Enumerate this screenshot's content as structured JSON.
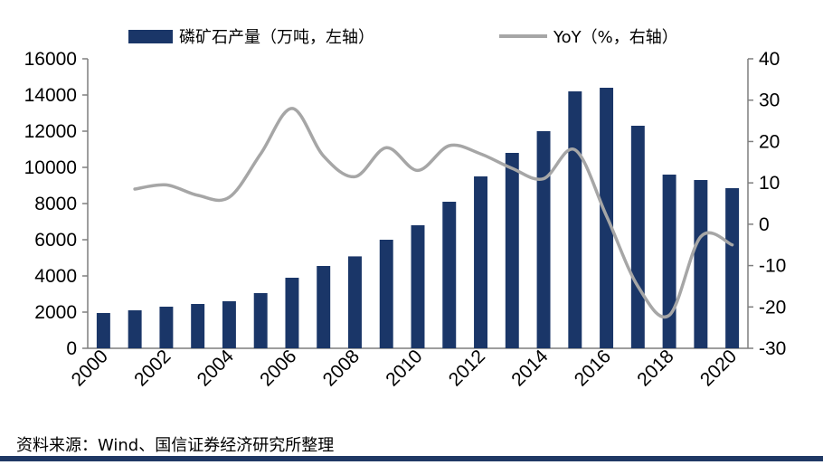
{
  "colors": {
    "bar": "#1a3668",
    "line": "#a6a6a6",
    "axis": "#7f7f7f",
    "rule": "#1f3864"
  },
  "legend": {
    "bar_label": "磷矿石产量（万吨，左轴）",
    "line_label": "YoY（%，右轴）"
  },
  "source": "资料来源：Wind、国信证券经济研究所整理",
  "chart_data": {
    "type": "bar+line",
    "title": "",
    "categories": [
      "2000",
      "2001",
      "2002",
      "2003",
      "2004",
      "2005",
      "2006",
      "2007",
      "2008",
      "2009",
      "2010",
      "2011",
      "2012",
      "2013",
      "2014",
      "2015",
      "2016",
      "2017",
      "2018",
      "2019",
      "2020"
    ],
    "x_tick_labels": [
      "2000",
      "2002",
      "2004",
      "2006",
      "2008",
      "2010",
      "2012",
      "2014",
      "2016",
      "2018",
      "2020"
    ],
    "left_axis": {
      "ylim": [
        0,
        16000
      ],
      "ticks": [
        0,
        2000,
        4000,
        6000,
        8000,
        10000,
        12000,
        14000,
        16000
      ]
    },
    "right_axis": {
      "ylim": [
        -30,
        40
      ],
      "ticks": [
        -30,
        -20,
        -10,
        0,
        10,
        20,
        30,
        40
      ]
    },
    "series": [
      {
        "name": "磷矿石产量（万吨，左轴）",
        "type": "bar",
        "axis": "left",
        "values": [
          1950,
          2100,
          2300,
          2450,
          2600,
          3050,
          3900,
          4550,
          5080,
          6000,
          6800,
          8100,
          9500,
          10800,
          12000,
          14200,
          14400,
          12300,
          9600,
          9300,
          8850
        ]
      },
      {
        "name": "YoY（%，右轴）",
        "type": "line",
        "axis": "right",
        "values": [
          null,
          8.5,
          9.5,
          7.0,
          6.5,
          17.0,
          28.0,
          16.5,
          11.5,
          18.5,
          13.0,
          19.0,
          17.0,
          13.5,
          11.0,
          18.0,
          2.0,
          -15.0,
          -22.0,
          -3.0,
          -5.0
        ]
      }
    ]
  }
}
